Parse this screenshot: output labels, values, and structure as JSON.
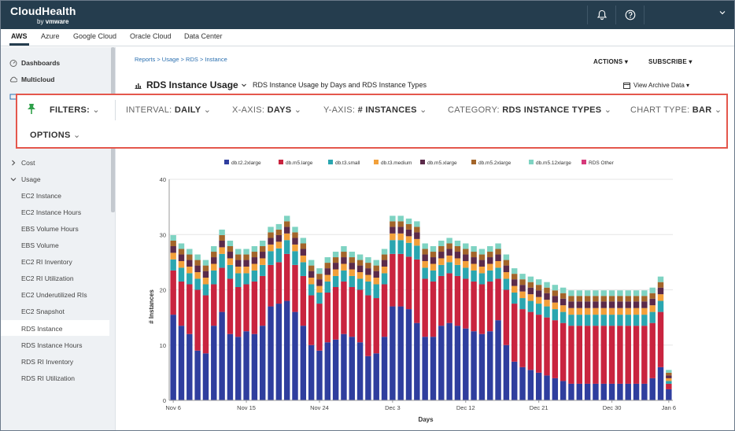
{
  "brand": {
    "name": "CloudHealth",
    "by": "by",
    "vendor": "vmware"
  },
  "cloud_tabs": [
    "AWS",
    "Azure",
    "Google Cloud",
    "Oracle Cloud",
    "Data Center"
  ],
  "sidebar": {
    "top": [
      {
        "label": "Dashboards",
        "icon": "dashboard-icon"
      },
      {
        "label": "Multicloud",
        "icon": "multicloud-icon"
      }
    ],
    "sections": [
      {
        "label": "Cost",
        "expanded": false
      },
      {
        "label": "Usage",
        "expanded": true
      }
    ],
    "usage_items": [
      "EC2 Instance",
      "EC2 Instance Hours",
      "EBS Volume Hours",
      "EBS Volume",
      "EC2 RI Inventory",
      "EC2 RI Utilization",
      "EC2 Underutilized RIs",
      "EC2 Snapshot",
      "RDS Instance",
      "RDS Instance Hours",
      "RDS RI Inventory",
      "RDS RI Utilization"
    ],
    "active": "RDS Instance"
  },
  "breadcrumb": "Reports > Usage > RDS > Instance",
  "header": {
    "actions": "ACTIONS",
    "subscribe": "SUBSCRIBE",
    "title": "RDS Instance Usage",
    "subtitle": "RDS Instance Usage by Days and RDS Instance Types",
    "archive": "View Archive Data"
  },
  "filters": {
    "filters_label": "FILTERS:",
    "interval_label": "INTERVAL:",
    "interval_value": "DAILY",
    "xaxis_label": "X-AXIS:",
    "xaxis_value": "DAYS",
    "yaxis_label": "Y-AXIS:",
    "yaxis_value": "# INSTANCES",
    "category_label": "CATEGORY:",
    "category_value": "RDS INSTANCE TYPES",
    "charttype_label": "CHART TYPE:",
    "charttype_value": "BAR",
    "options_label": "OPTIONS"
  },
  "colors": {
    "topbar": "#253d4e",
    "accent_border": "#e4574c",
    "link": "#2a6fb0"
  },
  "chart_data": {
    "type": "bar",
    "stacked": true,
    "xlabel": "Days",
    "ylabel": "# Instances",
    "ylim": [
      0,
      40
    ],
    "yticks": [
      0,
      10,
      20,
      30,
      40
    ],
    "x_tick_labels": [
      {
        "index": 0,
        "label": "Nov 6"
      },
      {
        "index": 9,
        "label": "Nov 15"
      },
      {
        "index": 18,
        "label": "Nov 24"
      },
      {
        "index": 27,
        "label": "Dec 3"
      },
      {
        "index": 36,
        "label": "Dec 12"
      },
      {
        "index": 45,
        "label": "Dec 21"
      },
      {
        "index": 54,
        "label": "Dec 30"
      },
      {
        "index": 61,
        "label": "Jan 6"
      }
    ],
    "legend_position": "top",
    "series": [
      {
        "name": "db.t2.2xlarge",
        "color": "#2f3e9e",
        "values": [
          15.5,
          13.5,
          12,
          9,
          8.5,
          13.5,
          16,
          12,
          11.5,
          12.5,
          12,
          13.5,
          17,
          17.5,
          18,
          16,
          13.5,
          10,
          9,
          10.5,
          11,
          12,
          11.5,
          10.5,
          8,
          8.5,
          11.5,
          17,
          17,
          16.5,
          14,
          11.5,
          11.5,
          13.5,
          14,
          13.5,
          13,
          12.5,
          12,
          12.5,
          14.5,
          10,
          7,
          6,
          5.5,
          5,
          4.5,
          4,
          3.5,
          3,
          3,
          3,
          3,
          3,
          3,
          3,
          3,
          3,
          3,
          4,
          6,
          2
        ]
      },
      {
        "name": "db.m5.large",
        "color": "#c9243f",
        "values": [
          8,
          8,
          9,
          11,
          10.5,
          7.5,
          8,
          10,
          9,
          8.5,
          9.5,
          9,
          7.5,
          7.5,
          8.5,
          8.5,
          9,
          9,
          8.5,
          9,
          9.5,
          9.5,
          9,
          9.5,
          11,
          10,
          9.5,
          9.5,
          9.5,
          9.5,
          11.5,
          10.5,
          10,
          9,
          9,
          9,
          9,
          9,
          9,
          9,
          7.5,
          10,
          10.5,
          10.5,
          10.5,
          10.5,
          10.5,
          10.5,
          10.5,
          10.5,
          10.5,
          10.5,
          10.5,
          10.5,
          10.5,
          10.5,
          10.5,
          10.5,
          10.5,
          10,
          10,
          1
        ]
      },
      {
        "name": "db.t3.small",
        "color": "#2aa6b0",
        "values": [
          2,
          2.5,
          2,
          2,
          2,
          2.5,
          2.5,
          2.5,
          2.5,
          2,
          2,
          2,
          2.5,
          2.5,
          2.5,
          2.5,
          2.5,
          2,
          2,
          2,
          2,
          2,
          2,
          2,
          2.5,
          2.5,
          2,
          2.5,
          2.5,
          2.5,
          2.5,
          2,
          2,
          2,
          2,
          2,
          2,
          2,
          2,
          2,
          2,
          2,
          2,
          2,
          2,
          2,
          2,
          2,
          2,
          2,
          2,
          2,
          2,
          2,
          2,
          2,
          2,
          2,
          2,
          2,
          2,
          0.5
        ]
      },
      {
        "name": "db.t3.medium",
        "color": "#f2a03a",
        "values": [
          1.2,
          1.2,
          1.2,
          1.2,
          1.2,
          1.2,
          1.2,
          1.2,
          1.2,
          1.2,
          1.2,
          1.2,
          1.2,
          1.2,
          1.2,
          1.2,
          1.2,
          1.2,
          1.2,
          1.2,
          1.2,
          1.2,
          1.2,
          1.2,
          1.2,
          1.2,
          1.2,
          1.2,
          1.2,
          1.2,
          1.2,
          1.2,
          1.2,
          1.2,
          1.2,
          1.2,
          1.2,
          1.2,
          1.2,
          1.2,
          1.2,
          1.2,
          1.2,
          1.2,
          1.2,
          1.2,
          1.2,
          1.2,
          1.2,
          1.2,
          1.2,
          1.2,
          1.2,
          1.2,
          1.2,
          1.2,
          1.2,
          1.2,
          1.2,
          1.2,
          1.2,
          0.5
        ]
      },
      {
        "name": "db.m5.xlarge",
        "color": "#5b2a4a",
        "values": [
          1.2,
          1.2,
          1.2,
          1.2,
          1.2,
          1.2,
          1.2,
          1.2,
          1.2,
          1.2,
          1.2,
          1.2,
          1.2,
          1.2,
          1.2,
          1.2,
          1.2,
          1.2,
          1.2,
          1.2,
          1.2,
          1.2,
          1.2,
          1.2,
          1.2,
          1.2,
          1.2,
          1.2,
          1.2,
          1.2,
          1.2,
          1.2,
          1.2,
          1.2,
          1.2,
          1.2,
          1.2,
          1.2,
          1.2,
          1.2,
          1.2,
          1.2,
          1.2,
          1.2,
          1.2,
          1.2,
          1.2,
          1.2,
          1.2,
          1.2,
          1.2,
          1.2,
          1.2,
          1.2,
          1.2,
          1.2,
          1.2,
          1.2,
          1.2,
          1.2,
          1.2,
          0.5
        ]
      },
      {
        "name": "db.m5.2xlarge",
        "color": "#a3652a",
        "values": [
          1,
          1,
          1,
          1,
          1,
          1,
          1,
          1,
          1,
          1,
          1,
          1,
          1,
          1,
          1,
          1,
          1,
          1,
          1,
          1,
          1,
          1,
          1,
          1,
          1,
          1,
          1,
          1,
          1,
          1,
          1,
          1,
          1,
          1,
          1,
          1,
          1,
          1,
          1,
          1,
          1,
          1,
          1,
          1,
          1,
          1,
          1,
          1,
          1,
          1,
          1,
          1,
          1,
          1,
          1,
          1,
          1,
          1,
          1,
          1,
          1,
          0.5
        ]
      },
      {
        "name": "db.m5.12xlarge",
        "color": "#7ed3c2",
        "values": [
          1,
          1,
          1,
          1,
          1,
          1,
          1,
          1,
          1,
          1,
          1,
          1,
          1,
          1,
          1,
          1,
          1,
          1,
          1,
          1,
          1,
          1,
          1,
          1,
          1,
          1,
          1,
          1,
          1,
          1,
          1,
          1,
          1,
          1,
          1,
          1,
          1,
          1,
          1,
          1,
          1,
          1,
          1,
          1,
          1,
          1,
          1,
          1,
          1,
          1,
          1,
          1,
          1,
          1,
          1,
          1,
          1,
          1,
          1,
          1,
          1,
          0.5
        ]
      },
      {
        "name": "RDS Other",
        "color": "#d6397a",
        "values": [
          0,
          0,
          0,
          0,
          0,
          0,
          0,
          0,
          0,
          0,
          0,
          0,
          0,
          0,
          0,
          0,
          0,
          0,
          0,
          0,
          0,
          0,
          0,
          0,
          0,
          0,
          0,
          0,
          0,
          0,
          0,
          0,
          0,
          0,
          0,
          0,
          0,
          0,
          0,
          0,
          0,
          0,
          0,
          0,
          0,
          0,
          0,
          0,
          0,
          0,
          0,
          0,
          0,
          0,
          0,
          0,
          0,
          0,
          0,
          0,
          0,
          0
        ]
      }
    ]
  }
}
